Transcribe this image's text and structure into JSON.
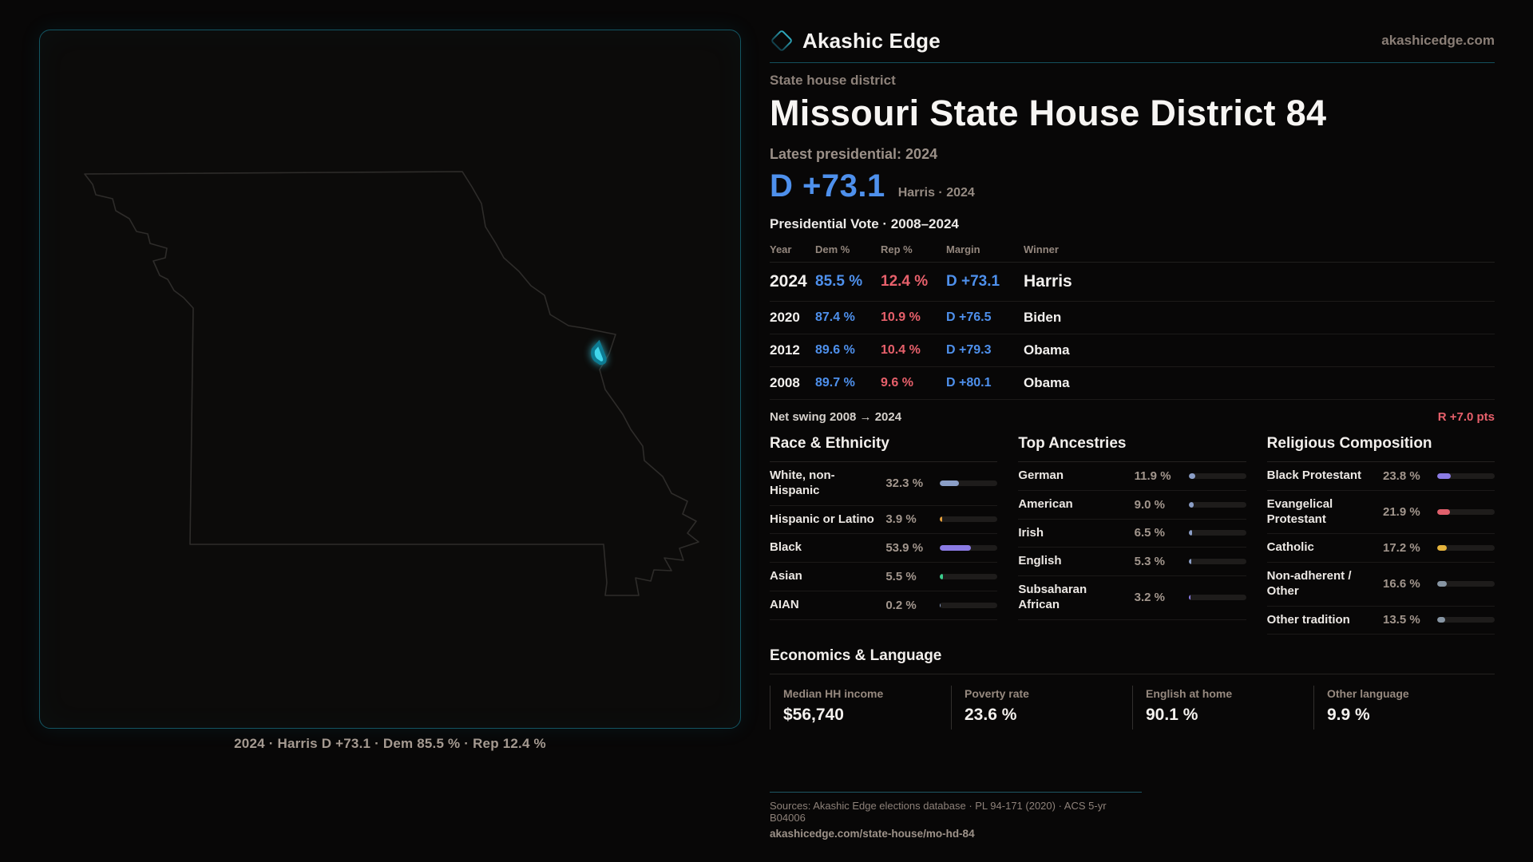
{
  "brand": {
    "name": "Akashic Edge",
    "domain": "akashicedge.com",
    "accent_teal": "#1798b5",
    "logo_icon": "diamond-icon"
  },
  "map": {
    "caption": "2024 · Harris D +73.1 · Dem 85.5 % · Rep 12.4 %",
    "district_fill": "#40d6ec",
    "outline_color": "#2e2c2a"
  },
  "header": {
    "kicker": "State house district",
    "title": "Missouri State House District 84",
    "latest_label": "Latest presidential: 2024",
    "margin_value": "D +73.1",
    "margin_context": "Harris · 2024"
  },
  "vote": {
    "title": "Presidential Vote · 2008–2024",
    "columns": [
      "Year",
      "Dem %",
      "Rep %",
      "Margin",
      "Winner"
    ],
    "dem_color": "#4e90ec",
    "rep_color": "#e7606b",
    "rows": [
      {
        "year": "2024",
        "dem": "85.5 %",
        "rep": "12.4 %",
        "margin": "D +73.1",
        "winner": "Harris"
      },
      {
        "year": "2020",
        "dem": "87.4 %",
        "rep": "10.9 %",
        "margin": "D +76.5",
        "winner": "Biden"
      },
      {
        "year": "2012",
        "dem": "89.6 %",
        "rep": "10.4 %",
        "margin": "D +79.3",
        "winner": "Obama"
      },
      {
        "year": "2008",
        "dem": "89.7 %",
        "rep": "9.6 %",
        "margin": "D +80.1",
        "winner": "Obama"
      }
    ]
  },
  "net_swing": {
    "label": "Net swing 2008 → 2024",
    "value": "R +7.0 pts",
    "value_color": "#e7606b"
  },
  "race": {
    "title": "Race & Ethnicity",
    "rows": [
      {
        "label": "White, non-Hispanic",
        "value": "32.3 %",
        "pct": 32.3,
        "color": "#8b9ec7"
      },
      {
        "label": "Hispanic or Latino",
        "value": "3.9 %",
        "pct": 3.9,
        "color": "#e5a03c"
      },
      {
        "label": "Black",
        "value": "53.9 %",
        "pct": 53.9,
        "color": "#8b7be4"
      },
      {
        "label": "Asian",
        "value": "5.5 %",
        "pct": 5.5,
        "color": "#3bcd8d"
      },
      {
        "label": "AIAN",
        "value": "0.2 %",
        "pct": 0.2,
        "color": "#8b9ec7"
      }
    ]
  },
  "ancestry": {
    "title": "Top Ancestries",
    "rows": [
      {
        "label": "German",
        "value": "11.9 %",
        "pct": 11.9,
        "color": "#8b9ec7"
      },
      {
        "label": "American",
        "value": "9.0 %",
        "pct": 9.0,
        "color": "#8b9ec7"
      },
      {
        "label": "Irish",
        "value": "6.5 %",
        "pct": 6.5,
        "color": "#8b9ec7"
      },
      {
        "label": "English",
        "value": "5.3 %",
        "pct": 5.3,
        "color": "#8b9ec7"
      },
      {
        "label": "Subsaharan African",
        "value": "3.2 %",
        "pct": 3.2,
        "color": "#8b7be4"
      }
    ]
  },
  "religion": {
    "title": "Religious Composition",
    "rows": [
      {
        "label": "Black Protestant",
        "value": "23.8 %",
        "pct": 23.8,
        "color": "#8b7be4"
      },
      {
        "label": "Evangelical Protestant",
        "value": "21.9 %",
        "pct": 21.9,
        "color": "#e0606c"
      },
      {
        "label": "Catholic",
        "value": "17.2 %",
        "pct": 17.2,
        "color": "#e5b33c"
      },
      {
        "label": "Non-adherent / Other",
        "value": "16.6 %",
        "pct": 16.6,
        "color": "#8795a3"
      },
      {
        "label": "Other tradition",
        "value": "13.5 %",
        "pct": 13.5,
        "color": "#8795a3"
      }
    ]
  },
  "economics": {
    "title": "Economics & Language",
    "stats": [
      {
        "label": "Median HH income",
        "value": "$56,740"
      },
      {
        "label": "Poverty rate",
        "value": "23.6 %"
      },
      {
        "label": "English at home",
        "value": "90.1 %"
      },
      {
        "label": "Other language",
        "value": "9.9 %"
      }
    ]
  },
  "footer": {
    "sources": "Sources: Akashic Edge elections database · PL 94-171 (2020) · ACS 5-yr B04006",
    "permalink": "akashicedge.com/state-house/mo-hd-84"
  }
}
